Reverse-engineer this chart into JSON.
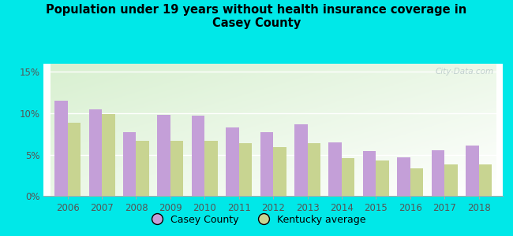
{
  "title": "Population under 19 years without health insurance coverage in\nCasey County",
  "years": [
    2006,
    2007,
    2008,
    2009,
    2010,
    2011,
    2012,
    2013,
    2014,
    2015,
    2016,
    2017,
    2018
  ],
  "casey_county": [
    11.5,
    10.5,
    7.7,
    9.8,
    9.7,
    8.3,
    7.7,
    8.7,
    6.5,
    5.4,
    4.7,
    5.5,
    6.1
  ],
  "kentucky_avg": [
    8.9,
    9.9,
    6.7,
    6.7,
    6.7,
    6.4,
    5.9,
    6.4,
    4.6,
    4.3,
    3.3,
    3.8,
    3.8
  ],
  "casey_color": "#c49fd8",
  "kentucky_color": "#c8d491",
  "bg_outer": "#00e8e8",
  "ylim": [
    0,
    16
  ],
  "yticks": [
    0,
    5,
    10,
    15
  ],
  "ytick_labels": [
    "0%",
    "5%",
    "10%",
    "15%"
  ],
  "bar_width": 0.38,
  "legend_casey": "Casey County",
  "legend_kentucky": "Kentucky average",
  "watermark": "City-Data.com"
}
